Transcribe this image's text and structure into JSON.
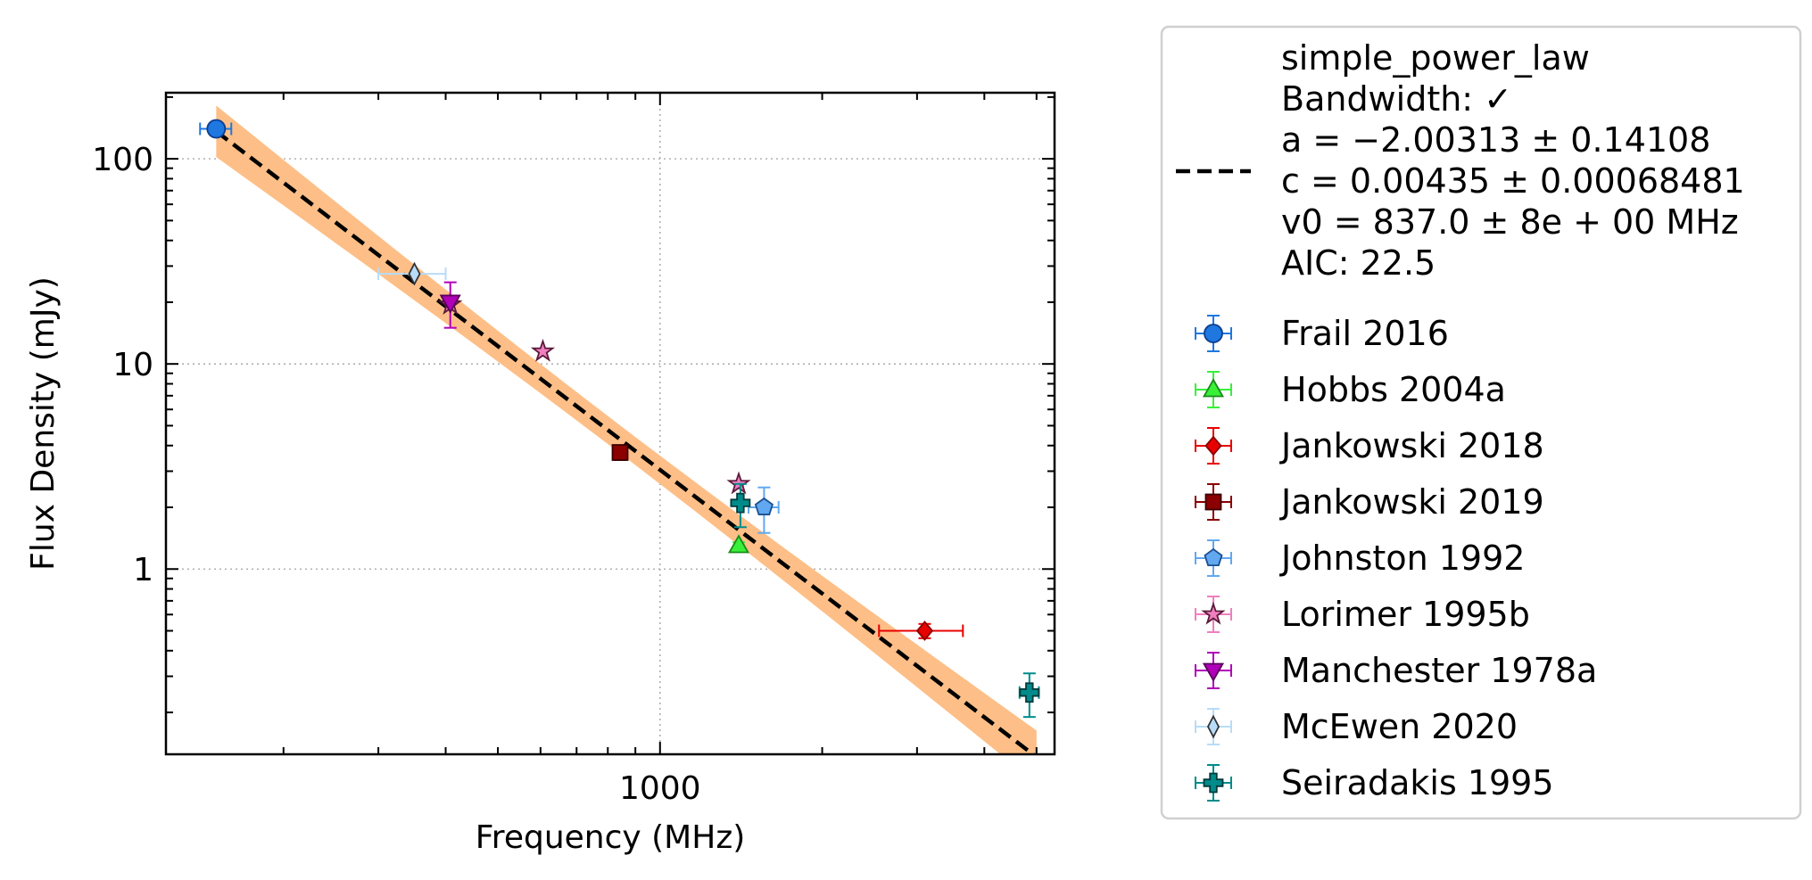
{
  "chart_data": {
    "type": "scatter",
    "xlabel": "Frequency (MHz)",
    "ylabel": "Flux Density (mJy)",
    "xscale": "log",
    "yscale": "log",
    "xlim": [
      121,
      5400
    ],
    "ylim": [
      0.125,
      210
    ],
    "x_ticks": [
      {
        "value": 1000,
        "label": "1000"
      }
    ],
    "y_ticks": [
      {
        "value": 1,
        "label": "1"
      },
      {
        "value": 10,
        "label": "10"
      },
      {
        "value": 100,
        "label": "100"
      }
    ],
    "grid": true,
    "legend_position": "outside-right",
    "fit": {
      "name": "simple_power_law",
      "lines": [
        "simple_power_law",
        "Bandwidth: ✓",
        "a = −2.00313 ± 0.14108",
        "c = 0.00435 ± 0.00068481",
        "v0 = 837.0 ± 8e + 00 MHz",
        "AIC: 22.5"
      ],
      "a": -2.00313,
      "c": 0.00435,
      "v0": 837.0,
      "a_err": 0.14108,
      "c_err": 0.00068481,
      "line_color": "#000000",
      "band_color": "#fdbf87",
      "x_range": [
        150,
        5000
      ]
    },
    "series": [
      {
        "name": "Frail 2016",
        "marker": "circle",
        "color": "#1f77e0",
        "edge": "#0a3d8f",
        "points": [
          {
            "x": 150,
            "y": 140,
            "xerr": [
              10,
              10
            ],
            "yerr": [
              0,
              0
            ]
          }
        ]
      },
      {
        "name": "Hobbs 2004a",
        "marker": "triangle-up",
        "color": "#39f039",
        "edge": "#1a8a1a",
        "points": [
          {
            "x": 1400,
            "y": 1.3,
            "xerr": [
              0,
              0
            ],
            "yerr": [
              0.05,
              0.05
            ]
          }
        ]
      },
      {
        "name": "Jankowski 2018",
        "marker": "diamond",
        "color": "#e80000",
        "edge": "#8b0000",
        "points": [
          {
            "x": 3100,
            "y": 0.5,
            "xerr": [
              550,
              550
            ],
            "yerr": [
              0.04,
              0.04
            ]
          }
        ]
      },
      {
        "name": "Jankowski 2019",
        "marker": "square",
        "color": "#8b0000",
        "edge": "#3a0000",
        "points": [
          {
            "x": 843,
            "y": 3.7,
            "xerr": [
              0,
              0
            ],
            "yerr": [
              0.3,
              0.3
            ]
          }
        ]
      },
      {
        "name": "Johnston 1992",
        "marker": "pentagon",
        "color": "#62a8f0",
        "edge": "#1a4f8f",
        "points": [
          {
            "x": 1560,
            "y": 2.0,
            "xerr": [
              100,
              100
            ],
            "yerr": [
              0.5,
              0.5
            ]
          }
        ]
      },
      {
        "name": "Lorimer 1995b",
        "marker": "star",
        "color": "#f07fbf",
        "edge": "#5a1a3a",
        "points": [
          {
            "x": 606,
            "y": 11.5,
            "xerr": [
              0,
              0
            ],
            "yerr": [
              0,
              0
            ]
          },
          {
            "x": 408,
            "y": 19.5,
            "xerr": [
              0,
              0
            ],
            "yerr": [
              0,
              0
            ]
          },
          {
            "x": 1400,
            "y": 2.6,
            "xerr": [
              0,
              0
            ],
            "yerr": [
              0,
              0
            ]
          }
        ]
      },
      {
        "name": "Manchester 1978a",
        "marker": "triangle-down",
        "color": "#b000b8",
        "edge": "#5a005a",
        "points": [
          {
            "x": 408,
            "y": 20,
            "xerr": [
              0,
              0
            ],
            "yerr": [
              5,
              5
            ]
          }
        ]
      },
      {
        "name": "McEwen 2020",
        "marker": "thin-diamond",
        "color": "#b8dcf8",
        "edge": "#333333",
        "points": [
          {
            "x": 350,
            "y": 27.5,
            "xerr": [
              50,
              50
            ],
            "yerr": [
              0,
              0
            ]
          }
        ]
      },
      {
        "name": "Seiradakis 1995",
        "marker": "plus",
        "color": "#008b8b",
        "edge": "#003a3a",
        "points": [
          {
            "x": 1410,
            "y": 2.1,
            "xerr": [
              0,
              0
            ],
            "yerr": [
              0.5,
              0.5
            ]
          },
          {
            "x": 4850,
            "y": 0.25,
            "xerr": [
              200,
              200
            ],
            "yerr": [
              0.06,
              0.06
            ]
          }
        ]
      }
    ]
  }
}
